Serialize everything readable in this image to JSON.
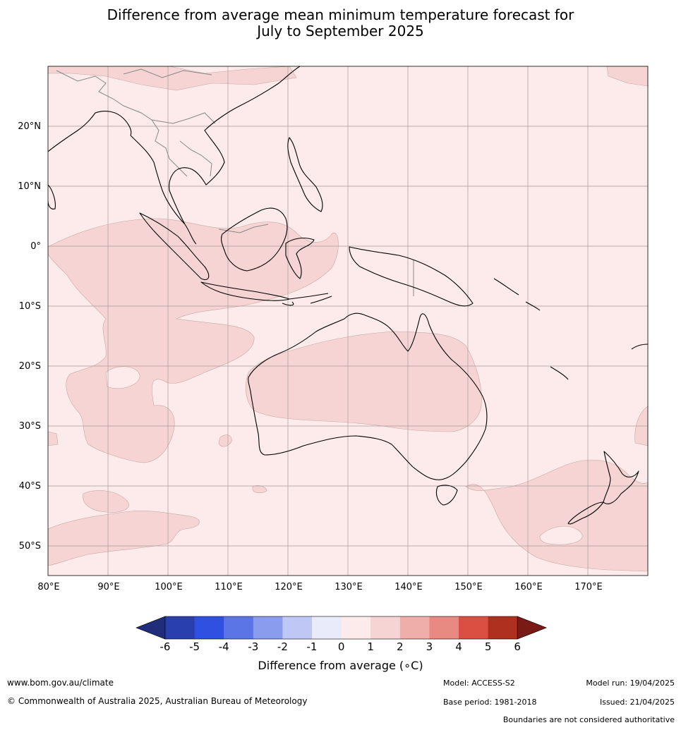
{
  "title_line1": "Difference from average mean minimum temperature forecast for",
  "title_line2": "July to September 2025",
  "lat_labels": [
    "20°N",
    "10°N",
    "0°",
    "10°S",
    "20°S",
    "30°S",
    "40°S",
    "50°S"
  ],
  "lon_labels": [
    "80°E",
    "90°E",
    "100°E",
    "110°E",
    "120°E",
    "130°E",
    "140°E",
    "150°E",
    "160°E",
    "170°E"
  ],
  "colorbar": {
    "title": "Difference from average (∘C)",
    "ticks": [
      "-6",
      "-5",
      "-4",
      "-3",
      "-2",
      "-1",
      "0",
      "1",
      "2",
      "3",
      "4",
      "5",
      "6"
    ],
    "colors": [
      "#1f2d7a",
      "#2a3fae",
      "#2f50e0",
      "#5b75e6",
      "#8a9cee",
      "#bfc7f5",
      "#e9ebfb",
      "#fcebea",
      "#f6d4d3",
      "#efaea9",
      "#e88a82",
      "#db4f43",
      "#b0301f",
      "#7a1a16"
    ]
  },
  "map": {
    "background_color": "#fcebea",
    "warm_anomaly_color": "#f6d4d3",
    "land_outline_color": "#000000",
    "border_color": "#888888",
    "grid_color": "#a89a9a"
  },
  "footer": {
    "website": "www.bom.gov.au/climate",
    "copyright": "© Commonwealth of Australia 2025, Australian Bureau of Meteorology",
    "model": "Model: ACCESS-S2",
    "base_period": "Base period: 1981-2018",
    "model_run": "Model run: 19/04/2025",
    "issued": "Issued: 21/04/2025",
    "disclaimer": "Boundaries are not considered authoritative"
  }
}
